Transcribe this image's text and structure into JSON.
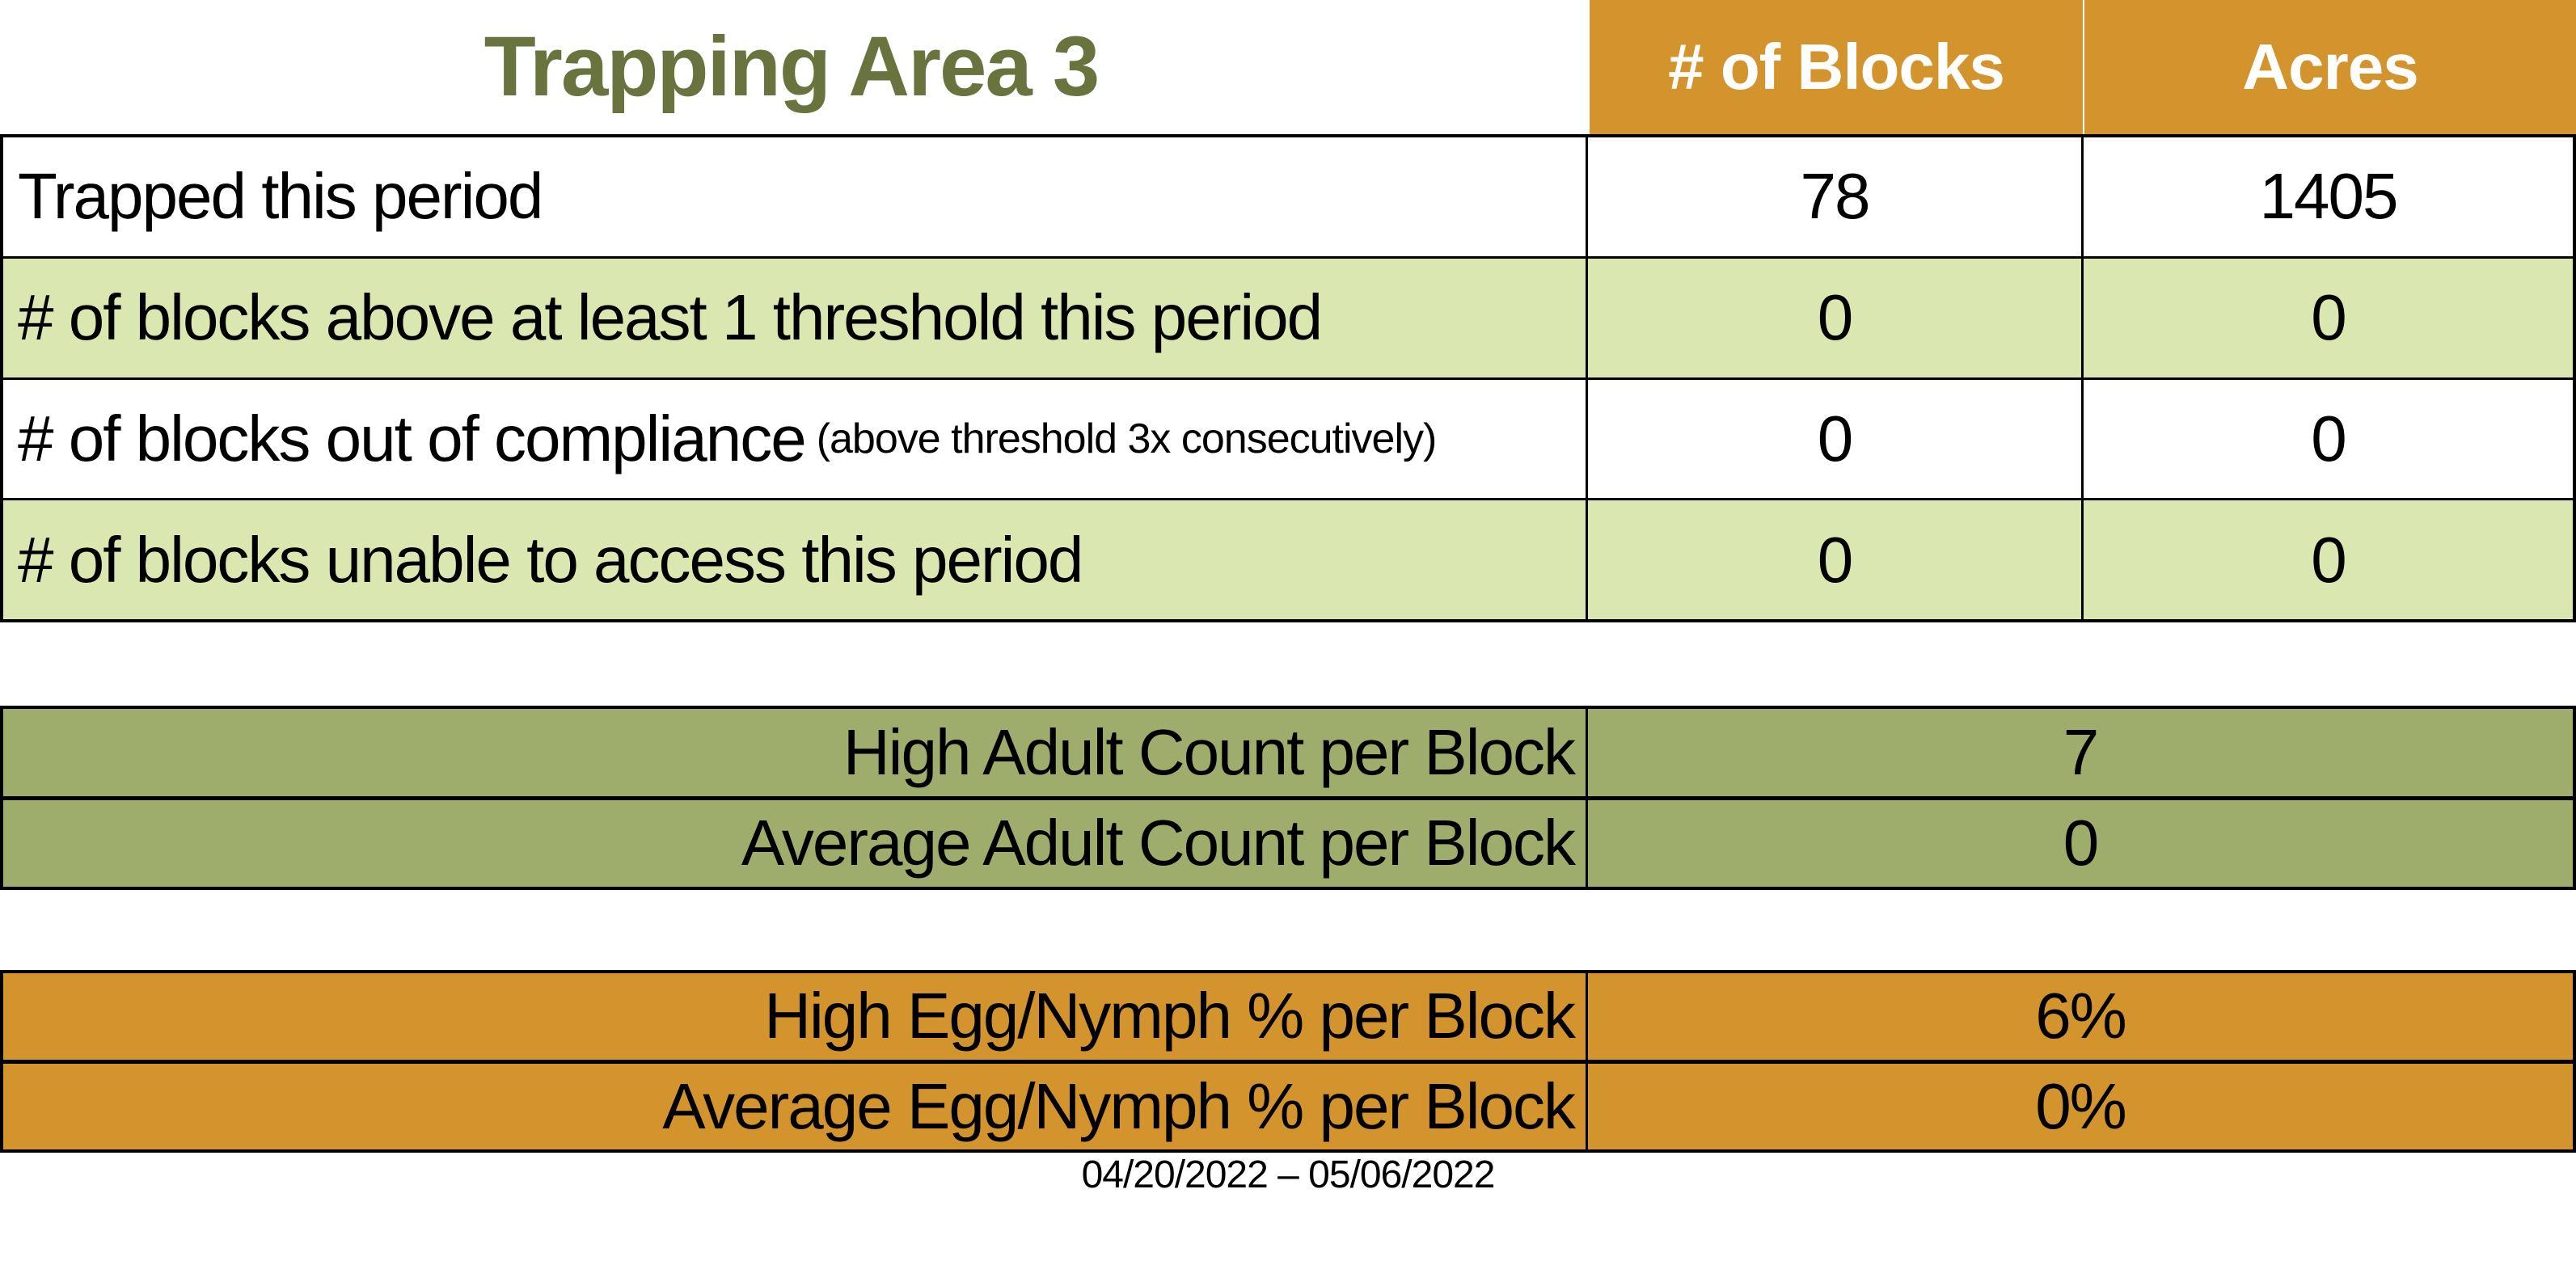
{
  "title": "Trapping Area 3",
  "columns": {
    "blocks": "# of Blocks",
    "acres": "Acres"
  },
  "summary_rows": [
    {
      "label": "Trapped this period",
      "note": "",
      "blocks": "78",
      "acres": "1405"
    },
    {
      "label": "# of blocks above at least 1 threshold this period",
      "note": "",
      "blocks": "0",
      "acres": "0"
    },
    {
      "label": "# of blocks out of compliance",
      "note": "(above threshold 3x consecutively)",
      "blocks": "0",
      "acres": "0"
    },
    {
      "label": "# of blocks unable to access this period",
      "note": "",
      "blocks": "0",
      "acres": "0"
    }
  ],
  "adult_section": {
    "rows": [
      {
        "label": "High Adult Count per Block",
        "value": "7"
      },
      {
        "label": "Average Adult Count per Block",
        "value": "0"
      }
    ]
  },
  "egg_section": {
    "rows": [
      {
        "label": "High Egg/Nymph % per Block",
        "value": "6%"
      },
      {
        "label": "Average Egg/Nymph % per Block",
        "value": "0%"
      }
    ]
  },
  "footer": {
    "date_range": "04/20/2022 – 05/06/2022"
  },
  "colors": {
    "orange": "#D3942D",
    "light_green": "#DBE7B1",
    "olive": "#9EAD6C",
    "title_green": "#68733E"
  }
}
